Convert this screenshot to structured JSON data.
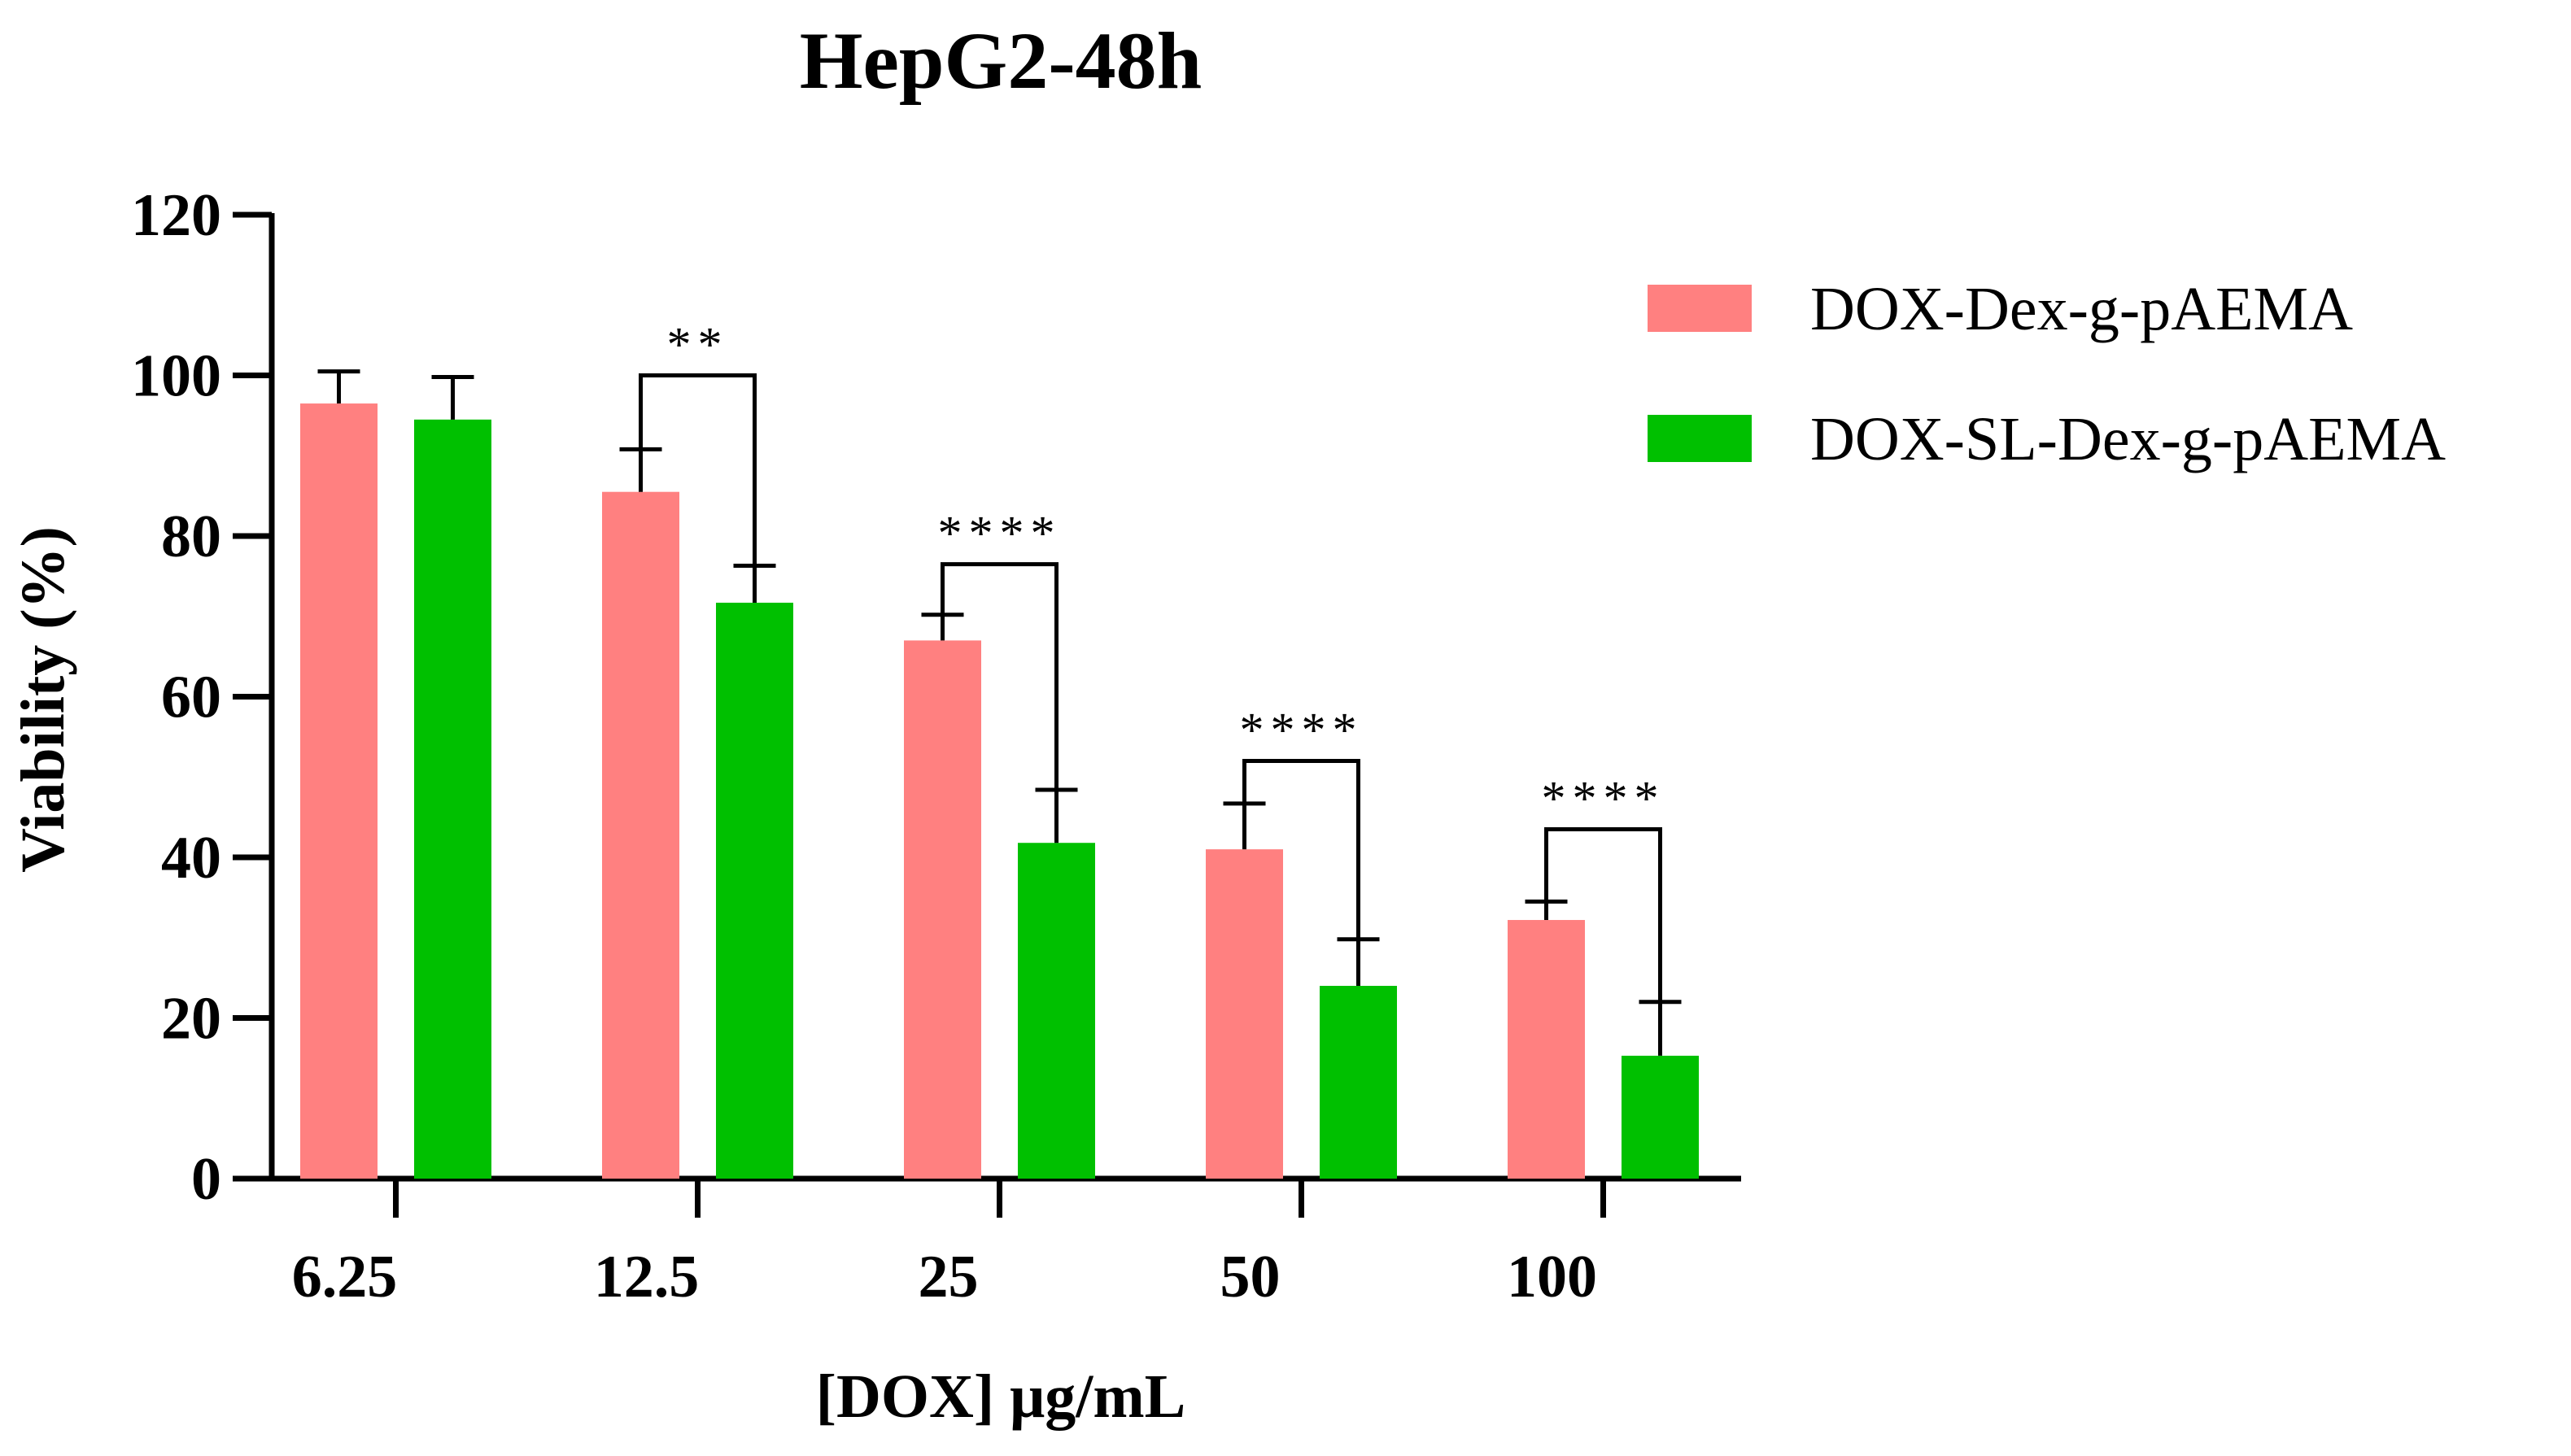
{
  "chart_data": {
    "type": "bar",
    "title": "HepG2-48h",
    "xlabel": "[DOX] μg/mL",
    "ylabel": "Viability (%)",
    "ylim": [
      0,
      120
    ],
    "yticks": [
      0,
      20,
      40,
      60,
      80,
      100,
      120
    ],
    "categories": [
      "6.25",
      "12.5",
      "25",
      "50",
      "100"
    ],
    "series": [
      {
        "name": "DOX-Dex-g-pAEMA",
        "color": "#ff8080",
        "values": [
          96.5,
          85.5,
          67,
          41,
          32.2
        ],
        "errors": [
          4,
          5.3,
          3.2,
          5.7,
          2.3
        ]
      },
      {
        "name": "DOX-SL-Dex-g-pAEMA",
        "color": "#00c000",
        "values": [
          94.5,
          71.7,
          41.8,
          24,
          15.3
        ],
        "errors": [
          5.3,
          4.6,
          6.6,
          5.8,
          6.7
        ]
      }
    ],
    "significance": [
      {
        "category_index": 1,
        "label": "**",
        "bracket_level": 100
      },
      {
        "category_index": 2,
        "label": "****",
        "bracket_level": 76.5
      },
      {
        "category_index": 3,
        "label": "****",
        "bracket_level": 52
      },
      {
        "category_index": 4,
        "label": "****",
        "bracket_level": 43.5
      }
    ],
    "legend_position": "top-right"
  }
}
